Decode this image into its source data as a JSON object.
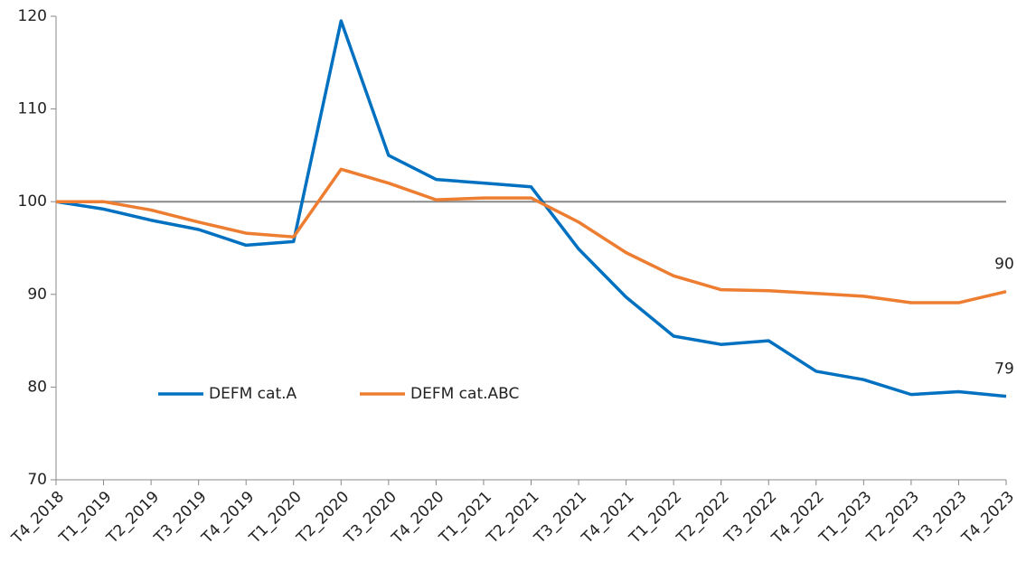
{
  "chart_data": {
    "type": "line",
    "categories": [
      "T4_2018",
      "T1_2019",
      "T2_2019",
      "T3_2019",
      "T4_2019",
      "T1_2020",
      "T2_2020",
      "T3_2020",
      "T4_2020",
      "T1_2021",
      "T2_2021",
      "T3_2021",
      "T4_2021",
      "T1_2022",
      "T2_2022",
      "T3_2022",
      "T4_2022",
      "T1_2023",
      "T2_2023",
      "T3_2023",
      "T4_2023"
    ],
    "series": [
      {
        "name": "DEFM cat.A",
        "color": "#0070c0",
        "values": [
          100,
          99.2,
          98.0,
          97.0,
          95.3,
          95.7,
          119.5,
          105.0,
          102.4,
          102.0,
          101.6,
          94.9,
          89.7,
          85.5,
          84.6,
          85.0,
          81.7,
          80.8,
          79.2,
          79.5,
          79.0
        ],
        "value_labels": [
          null,
          null,
          null,
          null,
          null,
          null,
          null,
          null,
          null,
          null,
          null,
          null,
          null,
          null,
          null,
          null,
          null,
          null,
          null,
          null,
          "79"
        ]
      },
      {
        "name": "DEFM cat.ABC",
        "color": "#ed7d31",
        "values": [
          100,
          100,
          99.1,
          97.8,
          96.6,
          96.2,
          103.5,
          102.0,
          100.2,
          100.4,
          100.4,
          97.8,
          94.5,
          92.0,
          90.5,
          90.4,
          90.1,
          89.8,
          89.1,
          89.1,
          90.3
        ],
        "value_labels": [
          null,
          null,
          null,
          null,
          null,
          null,
          null,
          null,
          null,
          null,
          null,
          null,
          null,
          null,
          null,
          null,
          null,
          null,
          null,
          null,
          "90"
        ]
      }
    ],
    "ylim": [
      70,
      120
    ],
    "yticks": [
      70,
      80,
      90,
      100,
      110,
      120
    ],
    "reference_line": 100,
    "legend": "lower left",
    "grid": false
  }
}
